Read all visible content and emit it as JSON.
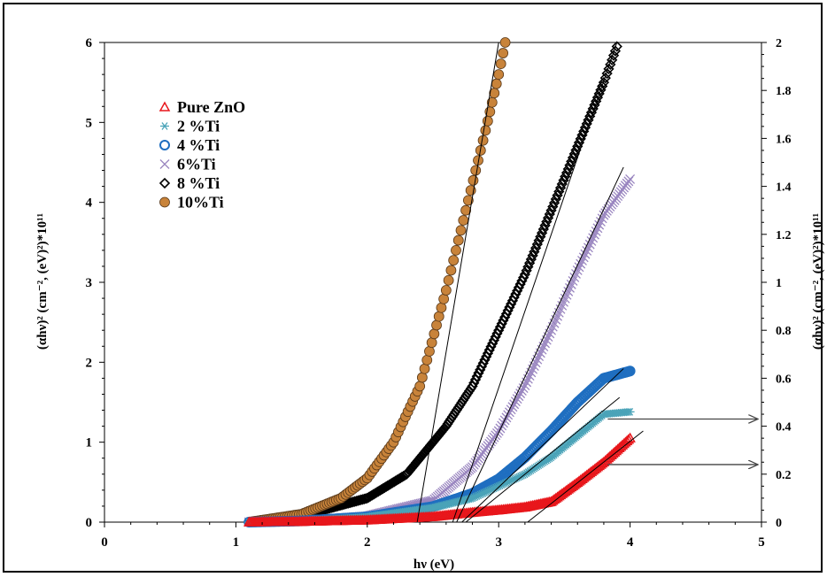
{
  "chart_data": {
    "type": "scatter",
    "xlabel": "hν (eV)",
    "ylabel": "(αhν)² (cm⁻², (eV)²)*10¹¹",
    "y2label": "(αhν)² (cm⁻², (eV)²)*10¹¹",
    "xlim": [
      0,
      5
    ],
    "ylim": [
      0,
      6
    ],
    "y2lim": [
      0,
      2
    ],
    "x_ticks": [
      "0",
      "1",
      "2",
      "3",
      "4",
      "5"
    ],
    "y_ticks": [
      "0",
      "1",
      "2",
      "3",
      "4",
      "5",
      "6"
    ],
    "y2_ticks": [
      "0",
      "0.2",
      "0.4",
      "0.6",
      "0.8",
      "1",
      "1.2",
      "1.4",
      "1.6",
      "1.8",
      "2"
    ],
    "grid": false,
    "legend_position": "top-left",
    "series": [
      {
        "name": "Pure ZnO",
        "marker": "triangle",
        "color": "#e8161b",
        "axis": "right",
        "x": [
          1.1,
          1.5,
          2.0,
          2.5,
          2.8,
          3.0,
          3.2,
          3.4,
          3.6,
          3.8,
          4.0
        ],
        "y": [
          0.0,
          0.002,
          0.008,
          0.022,
          0.04,
          0.05,
          0.062,
          0.085,
          0.165,
          0.25,
          0.35
        ]
      },
      {
        "name": "2 %Ti",
        "marker": "asterisk",
        "color": "#4aa3b8",
        "axis": "right",
        "x": [
          1.1,
          1.5,
          2.0,
          2.5,
          2.8,
          3.0,
          3.2,
          3.4,
          3.6,
          3.8,
          4.0
        ],
        "y": [
          0.0,
          0.005,
          0.022,
          0.06,
          0.1,
          0.15,
          0.2,
          0.27,
          0.36,
          0.45,
          0.46
        ]
      },
      {
        "name": "4 %Ti",
        "marker": "circle-open",
        "color": "#1f6ec0",
        "axis": "right",
        "x": [
          1.1,
          1.5,
          2.0,
          2.5,
          2.8,
          3.0,
          3.2,
          3.4,
          3.6,
          3.8,
          4.0
        ],
        "y": [
          0.0,
          0.005,
          0.022,
          0.065,
          0.12,
          0.18,
          0.27,
          0.38,
          0.5,
          0.6,
          0.63
        ]
      },
      {
        "name": "6%Ti",
        "marker": "x",
        "color": "#9a86c0",
        "axis": "right",
        "x": [
          1.1,
          1.5,
          2.0,
          2.5,
          2.8,
          3.0,
          3.2,
          3.4,
          3.6,
          3.8,
          4.0
        ],
        "y": [
          0.0,
          0.005,
          0.025,
          0.09,
          0.23,
          0.38,
          0.57,
          0.8,
          1.05,
          1.28,
          1.43
        ]
      },
      {
        "name": "8 %Ti",
        "marker": "diamond-open",
        "color": "#000000",
        "axis": "left",
        "x": [
          1.1,
          1.5,
          2.0,
          2.3,
          2.6,
          2.8,
          3.0,
          3.2,
          3.4,
          3.6,
          3.8,
          3.9
        ],
        "y": [
          0.0,
          0.08,
          0.3,
          0.6,
          1.2,
          1.7,
          2.4,
          3.1,
          3.9,
          4.7,
          5.5,
          5.95
        ]
      },
      {
        "name": "10%Ti",
        "marker": "circle-filled",
        "color": "#c8833a",
        "axis": "left",
        "x": [
          1.1,
          1.5,
          1.8,
          2.0,
          2.2,
          2.4,
          2.6,
          2.75,
          2.9,
          3.0,
          3.05
        ],
        "y": [
          0.0,
          0.1,
          0.3,
          0.55,
          1.0,
          1.7,
          2.9,
          3.9,
          4.9,
          5.6,
          6.0
        ]
      }
    ],
    "tangent_lines": [
      {
        "axis": "left",
        "x1": 2.38,
        "y1": 0.0,
        "x2": 3.0,
        "y2": 6.0
      },
      {
        "axis": "left",
        "x1": 2.65,
        "y1": 0.0,
        "x2": 3.9,
        "y2": 6.0
      },
      {
        "axis": "right",
        "x1": 2.68,
        "y1": 0.0,
        "x2": 3.95,
        "y2": 1.48
      },
      {
        "axis": "right",
        "x1": 2.72,
        "y1": 0.0,
        "x2": 3.95,
        "y2": 0.64
      },
      {
        "axis": "right",
        "x1": 2.75,
        "y1": 0.0,
        "x2": 3.92,
        "y2": 0.52
      },
      {
        "axis": "right",
        "x1": 3.22,
        "y1": 0.0,
        "x2": 4.1,
        "y2": 0.38
      }
    ],
    "arrows": [
      {
        "axis": "right",
        "from_x": 3.83,
        "from_y": 0.43,
        "to_x": 5.0,
        "to_y": 0.43
      },
      {
        "axis": "right",
        "from_x": 3.83,
        "from_y": 0.24,
        "to_x": 5.0,
        "to_y": 0.24
      }
    ]
  }
}
